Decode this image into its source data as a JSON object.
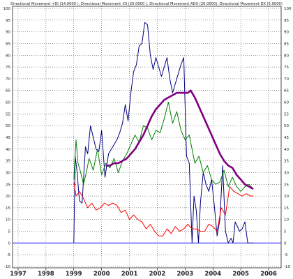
{
  "chart_data": {
    "type": "line",
    "title": "Directional Movement +DI (14.0000 ), Directional Movement -DI (20.0000 ), Directional Movement ADX (20.0000), Directional Movement DX (5.0000)",
    "ylim": [
      -10,
      100
    ],
    "yticks": [
      100,
      95,
      90,
      85,
      80,
      75,
      70,
      65,
      60,
      55,
      50,
      45,
      40,
      35,
      30,
      25,
      20,
      15,
      10,
      5,
      0,
      -5,
      -10
    ],
    "xlim": [
      1996.8,
      2006.45
    ],
    "xticks": [
      "1997",
      "1998",
      "1999",
      "2000",
      "2001",
      "2002",
      "2003",
      "2004",
      "2005",
      "2006"
    ],
    "grid": true,
    "zero_line": true,
    "series": [
      {
        "color": "#000080",
        "x": [
          1999.0,
          1999.05,
          1999.12,
          1999.2,
          1999.3,
          1999.42,
          1999.5,
          1999.6,
          1999.7,
          1999.8,
          1999.9,
          2000.0,
          2000.12,
          2000.25,
          2000.35,
          2000.45,
          2000.55,
          2000.65,
          2000.75,
          2000.85,
          2000.95,
          2001.05,
          2001.15,
          2001.25,
          2001.35,
          2001.45,
          2001.55,
          2001.65,
          2001.75,
          2001.85,
          2001.95,
          2002.05,
          2002.15,
          2002.25,
          2002.35,
          2002.45,
          2002.55,
          2002.65,
          2002.75,
          2002.85,
          2002.95,
          2003.05,
          2003.15,
          2003.25,
          2003.32,
          2003.4,
          2003.48,
          2003.55,
          2003.65,
          2003.75,
          2003.85,
          2003.95,
          2004.05,
          2004.15,
          2004.25,
          2004.35,
          2004.45,
          2004.55,
          2004.65,
          2004.72,
          2004.8,
          2004.88,
          2004.95,
          2005.05,
          2005.15,
          2005.25,
          2005.35,
          2005.45
        ],
        "values": [
          0,
          37,
          30,
          18,
          17,
          41,
          38,
          50,
          45,
          40,
          39,
          48,
          28,
          38,
          40,
          42,
          44,
          47,
          51,
          59,
          52,
          64,
          73,
          76,
          84,
          85,
          94,
          93,
          80,
          74,
          79,
          75,
          71,
          75,
          79,
          70,
          64,
          68,
          72,
          76,
          79,
          37,
          34,
          0,
          20,
          14,
          0,
          17,
          30,
          25,
          22,
          27,
          16,
          3,
          10,
          33,
          5,
          0,
          2,
          0,
          9,
          7,
          5,
          6,
          9,
          0,
          0,
          0
        ]
      },
      {
        "color": "#008000",
        "x": [
          1999.0,
          1999.08,
          1999.15,
          1999.25,
          1999.35,
          1999.45,
          1999.55,
          1999.7,
          1999.85,
          2000.0,
          2000.15,
          2000.3,
          2000.45,
          2000.6,
          2000.75,
          2000.9,
          2001.05,
          2001.2,
          2001.35,
          2001.5,
          2001.65,
          2001.8,
          2001.95,
          2002.1,
          2002.25,
          2002.4,
          2002.55,
          2002.7,
          2002.85,
          2003.0,
          2003.15,
          2003.25,
          2003.35,
          2003.5,
          2003.65,
          2003.8,
          2003.95,
          2004.1,
          2004.25,
          2004.4,
          2004.55,
          2004.7,
          2004.85,
          2005.0,
          2005.15,
          2005.3,
          2005.45
        ],
        "values": [
          27,
          44,
          34,
          30,
          25,
          30,
          36,
          31,
          40,
          29,
          34,
          32,
          36,
          30,
          35,
          38,
          42,
          46,
          43,
          50,
          49,
          44,
          48,
          47,
          53,
          60,
          51,
          56,
          48,
          44,
          46,
          40,
          34,
          37,
          30,
          33,
          27,
          25,
          26,
          31,
          24,
          28,
          24,
          22,
          24,
          25,
          23
        ]
      },
      {
        "color": "#ff0000",
        "x": [
          1999.0,
          1999.08,
          1999.2,
          1999.35,
          1999.5,
          1999.65,
          1999.8,
          1999.95,
          2000.1,
          2000.25,
          2000.4,
          2000.55,
          2000.7,
          2000.85,
          2001.0,
          2001.15,
          2001.3,
          2001.45,
          2001.6,
          2001.75,
          2001.9,
          2002.05,
          2002.2,
          2002.35,
          2002.5,
          2002.65,
          2002.8,
          2002.95,
          2003.1,
          2003.25,
          2003.4,
          2003.55,
          2003.7,
          2003.85,
          2004.0,
          2004.15,
          2004.3,
          2004.45,
          2004.6,
          2004.75,
          2004.9,
          2005.05,
          2005.2,
          2005.35,
          2005.45
        ],
        "values": [
          26,
          20,
          22,
          19,
          15,
          17,
          14,
          15,
          17,
          16,
          17,
          16,
          13,
          14,
          10,
          12,
          10,
          9,
          6,
          8,
          5,
          3,
          3,
          6,
          4,
          7,
          5,
          6,
          8,
          6,
          6,
          5,
          5,
          8,
          7,
          5,
          15,
          12,
          24,
          22,
          21,
          20,
          21,
          20,
          20
        ]
      },
      {
        "color": "#800080",
        "x": [
          2000.15,
          2000.3,
          2000.45,
          2000.6,
          2000.75,
          2000.9,
          2001.05,
          2001.2,
          2001.35,
          2001.5,
          2001.65,
          2001.8,
          2001.95,
          2002.1,
          2002.25,
          2002.4,
          2002.55,
          2002.7,
          2002.85,
          2003.0,
          2003.1,
          2003.2,
          2003.35,
          2003.5,
          2003.65,
          2003.8,
          2003.95,
          2004.1,
          2004.25,
          2004.4,
          2004.55,
          2004.7,
          2004.85,
          2005.0,
          2005.15,
          2005.3,
          2005.45
        ],
        "values": [
          33,
          33,
          34,
          34,
          35,
          36,
          38,
          40,
          43,
          46,
          50,
          54,
          57,
          59,
          61,
          62,
          63,
          64,
          64,
          64,
          64,
          65,
          62,
          58,
          54,
          50,
          46,
          42,
          38,
          35,
          33,
          32,
          29,
          27,
          25,
          24,
          23
        ]
      }
    ]
  }
}
